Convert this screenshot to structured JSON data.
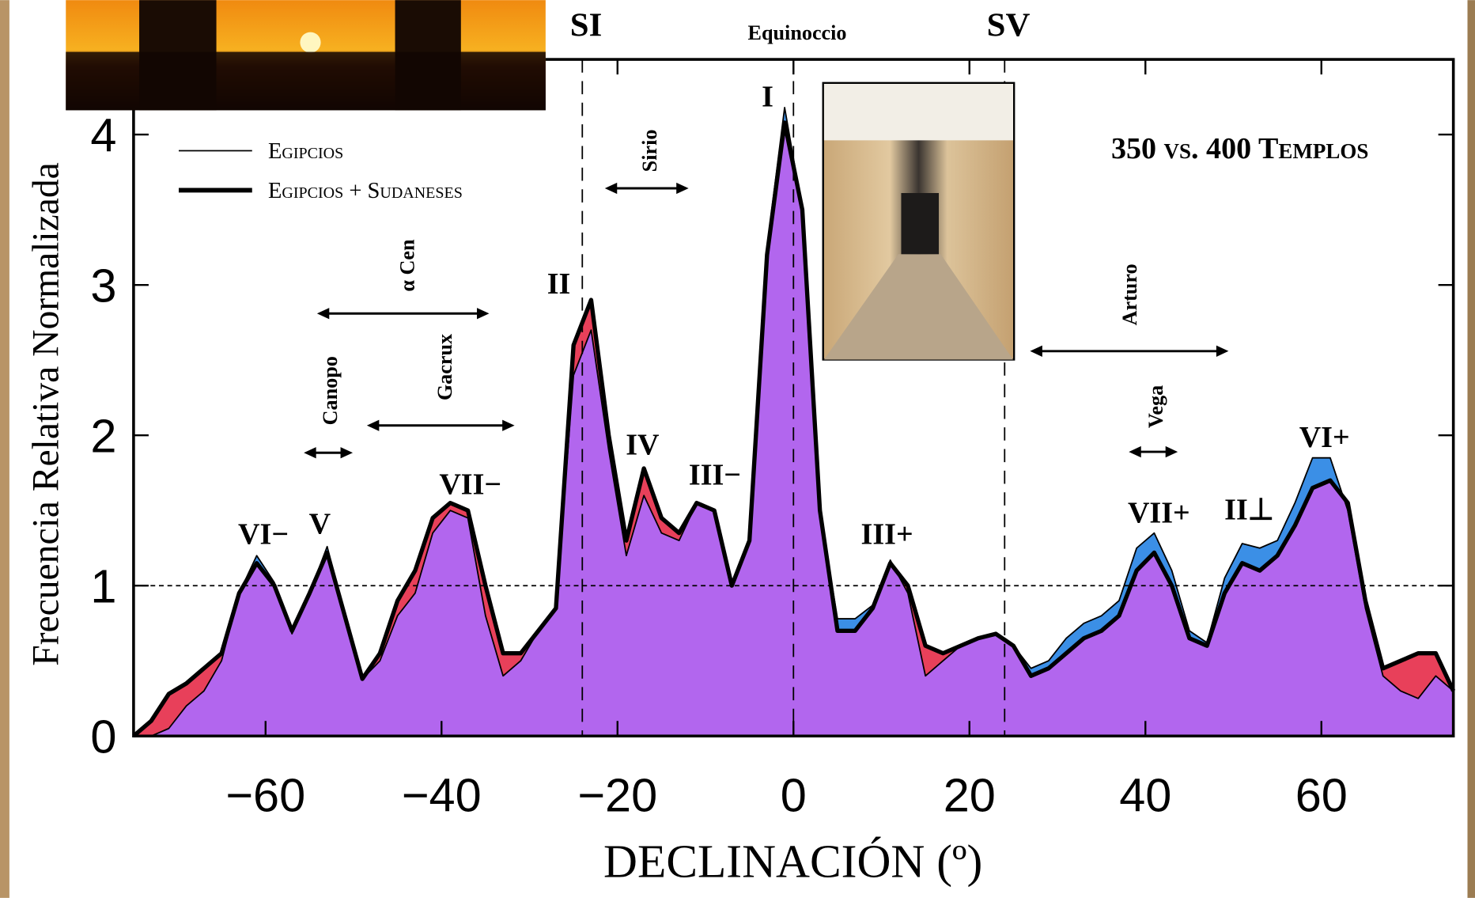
{
  "chart_data": {
    "type": "area",
    "title": "350 vs. 400 Templos",
    "x_label": "DECLINACIÓN (º)",
    "y_label": "Frecuencia Relativa Normalizada",
    "x": [
      -75,
      -73,
      -71,
      -69,
      -67,
      -65,
      -63,
      -61,
      -59,
      -57,
      -55,
      -53,
      -51,
      -49,
      -47,
      -45,
      -43,
      -41,
      -39,
      -37,
      -35,
      -33,
      -31,
      -29,
      -27,
      -25,
      -23,
      -21,
      -19,
      -17,
      -15,
      -13,
      -11,
      -9,
      -7,
      -5,
      -3,
      -1,
      1,
      3,
      5,
      7,
      9,
      11,
      13,
      15,
      17,
      19,
      21,
      23,
      25,
      27,
      29,
      31,
      33,
      35,
      37,
      39,
      41,
      43,
      45,
      47,
      49,
      51,
      53,
      55,
      57,
      59,
      61,
      63,
      65,
      67,
      69,
      71,
      73,
      75
    ],
    "series": [
      {
        "name": "Egipcios",
        "color": "#3b8fe6",
        "line_color": "#000000",
        "values": [
          0,
          0,
          0.05,
          0.2,
          0.3,
          0.5,
          0.95,
          1.2,
          1.02,
          0.68,
          0.95,
          1.26,
          0.8,
          0.38,
          0.5,
          0.8,
          0.95,
          1.35,
          1.5,
          1.45,
          0.8,
          0.4,
          0.5,
          0.7,
          0.85,
          2.4,
          2.7,
          1.9,
          1.2,
          1.6,
          1.35,
          1.3,
          1.55,
          1.5,
          1.0,
          1.3,
          3.25,
          4.18,
          3.5,
          1.5,
          0.78,
          0.78,
          0.87,
          1.17,
          0.95,
          0.4,
          0.5,
          0.6,
          0.65,
          0.68,
          0.6,
          0.45,
          0.5,
          0.65,
          0.75,
          0.8,
          0.9,
          1.25,
          1.35,
          1.1,
          0.7,
          0.62,
          1.05,
          1.28,
          1.25,
          1.3,
          1.55,
          1.85,
          1.85,
          1.5,
          0.85,
          0.4,
          0.3,
          0.25,
          0.4,
          0.3
        ]
      },
      {
        "name": "Egipcios + Sudaneses",
        "color": "#e8405a",
        "line_color": "#000000",
        "values": [
          0,
          0.1,
          0.28,
          0.35,
          0.45,
          0.55,
          0.95,
          1.15,
          1.0,
          0.7,
          0.95,
          1.22,
          0.8,
          0.38,
          0.55,
          0.9,
          1.1,
          1.45,
          1.55,
          1.5,
          1.0,
          0.55,
          0.55,
          0.7,
          0.85,
          2.6,
          2.9,
          2.0,
          1.3,
          1.78,
          1.45,
          1.35,
          1.55,
          1.5,
          1.0,
          1.3,
          3.2,
          4.08,
          3.5,
          1.5,
          0.7,
          0.7,
          0.85,
          1.15,
          1.0,
          0.6,
          0.55,
          0.6,
          0.65,
          0.68,
          0.6,
          0.4,
          0.45,
          0.55,
          0.65,
          0.7,
          0.8,
          1.1,
          1.22,
          1.0,
          0.65,
          0.6,
          0.95,
          1.15,
          1.1,
          1.2,
          1.4,
          1.65,
          1.7,
          1.55,
          0.9,
          0.45,
          0.5,
          0.55,
          0.55,
          0.3
        ]
      }
    ],
    "overlap_color": "#b266ee",
    "xlim": [
      -75,
      75
    ],
    "ylim": [
      0,
      4.5
    ],
    "xticks": [
      {
        "value": -60,
        "label": "−60"
      },
      {
        "value": -40,
        "label": "−40"
      },
      {
        "value": -20,
        "label": "−20"
      },
      0,
      20,
      40,
      60
    ],
    "yticks": [
      0,
      1,
      2,
      3,
      4
    ],
    "hline": 1,
    "markers": [
      {
        "x": -24,
        "label": "SI"
      },
      {
        "x": 0,
        "label": "Equinoccio"
      },
      {
        "x": 24,
        "label": "SV"
      }
    ],
    "peak_labels": [
      "VI−",
      "V",
      "VII−",
      "II",
      "IV",
      "III−",
      "I",
      "III+",
      "VII+",
      "II⊥",
      "VI+"
    ],
    "star_labels": [
      "Sirio",
      "α Cen",
      "Gacrux",
      "Canopo",
      "Arturo",
      "Vega"
    ]
  }
}
